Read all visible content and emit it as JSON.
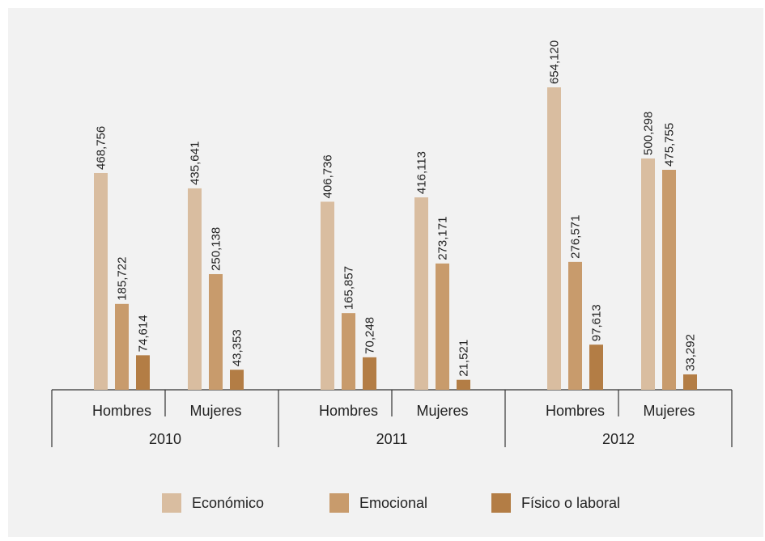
{
  "chart_data": {
    "type": "bar",
    "groups": [
      {
        "year": "2010",
        "categories": [
          {
            "label": "Hombres",
            "values": [
              468756,
              185722,
              74614
            ],
            "labels": [
              "468,756",
              "185,722",
              "74,614"
            ]
          },
          {
            "label": "Mujeres",
            "values": [
              435641,
              250138,
              43353
            ],
            "labels": [
              "435,641",
              "250,138",
              "43,353"
            ]
          }
        ]
      },
      {
        "year": "2011",
        "categories": [
          {
            "label": "Hombres",
            "values": [
              406736,
              165857,
              70248
            ],
            "labels": [
              "406,736",
              "165,857",
              "70,248"
            ]
          },
          {
            "label": "Mujeres",
            "values": [
              416113,
              273171,
              21521
            ],
            "labels": [
              "416,113",
              "273,171",
              "21,521"
            ]
          }
        ]
      },
      {
        "year": "2012",
        "categories": [
          {
            "label": "Hombres",
            "values": [
              654120,
              276571,
              97613
            ],
            "labels": [
              "654,120",
              "276,571",
              "97,613"
            ]
          },
          {
            "label": "Mujeres",
            "values": [
              500298,
              475755,
              33292
            ],
            "labels": [
              "500,298",
              "475,755",
              "33,292"
            ]
          }
        ]
      }
    ],
    "series": [
      {
        "name": "Económico",
        "color": "#d9bda0"
      },
      {
        "name": "Emocional",
        "color": "#c89b6c"
      },
      {
        "name": "Físico o laboral",
        "color": "#b37d45"
      }
    ],
    "ylim": [
      0,
      654120
    ],
    "grid": false,
    "legend": "bottom"
  }
}
